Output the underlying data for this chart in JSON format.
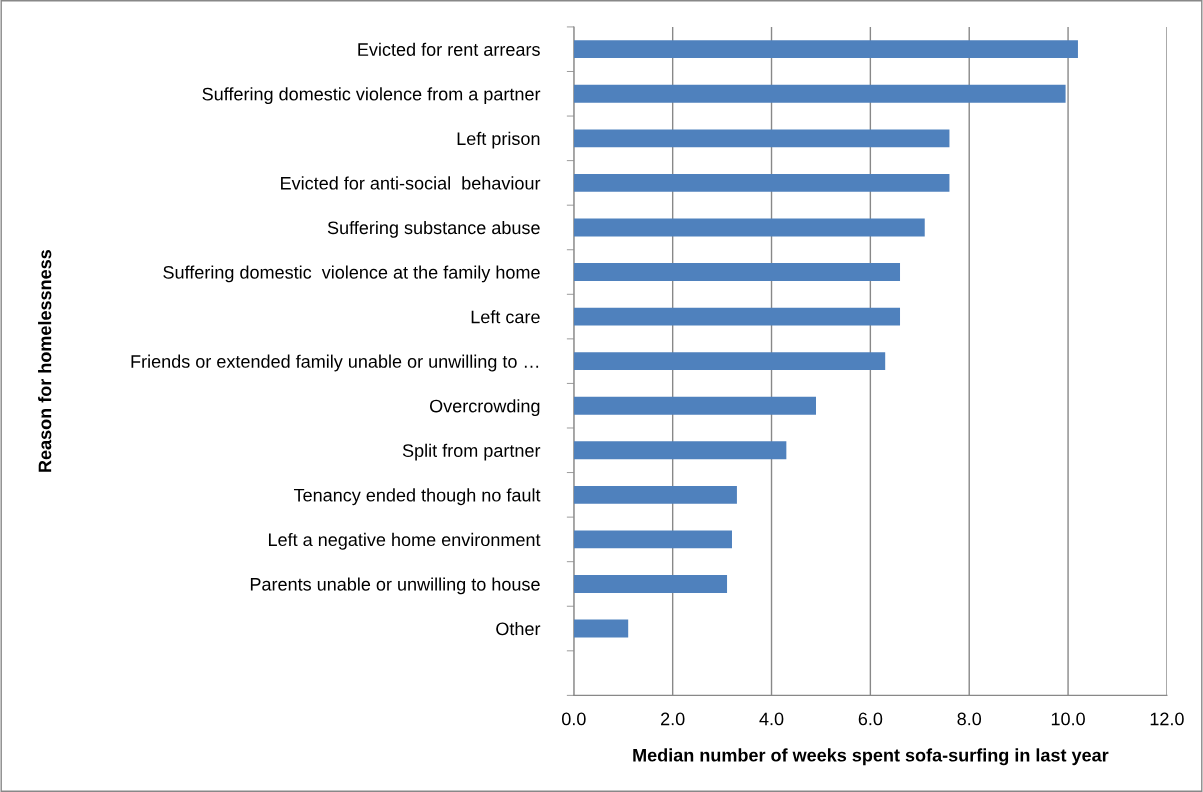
{
  "chart_data": {
    "type": "bar",
    "orientation": "horizontal",
    "xlabel": "Median number of weeks spent sofa-surfing in last year",
    "ylabel": "Reason for homelessness",
    "categories": [
      "Evicted for rent arrears",
      "Suffering domestic violence from a partner",
      "Left prison",
      "Evicted for anti-social  behaviour",
      "Suffering substance abuse",
      "Suffering domestic  violence at the family home",
      "Left care",
      "Friends or extended family unable or unwilling to …",
      "Overcrowding",
      "Split from partner",
      "Tenancy ended though no fault",
      "Left a negative home environment",
      "Parents unable or unwilling to house",
      "Other",
      null
    ],
    "values": [
      10.2,
      9.95,
      7.6,
      7.6,
      7.1,
      6.6,
      6.6,
      6.3,
      4.9,
      4.3,
      3.3,
      3.2,
      3.1,
      1.1,
      null
    ],
    "color": "#4f81bd",
    "xlim": [
      0,
      12
    ],
    "xticks": [
      {
        "value": 0,
        "label": "0.0"
      },
      {
        "value": 2,
        "label": "2.0"
      },
      {
        "value": 4,
        "label": "4.0"
      },
      {
        "value": 6,
        "label": "6.0"
      },
      {
        "value": 8,
        "label": "8.0"
      },
      {
        "value": 10,
        "label": "10.0"
      },
      {
        "value": 12,
        "label": "12.0"
      }
    ],
    "grid": "x",
    "legend": false
  }
}
